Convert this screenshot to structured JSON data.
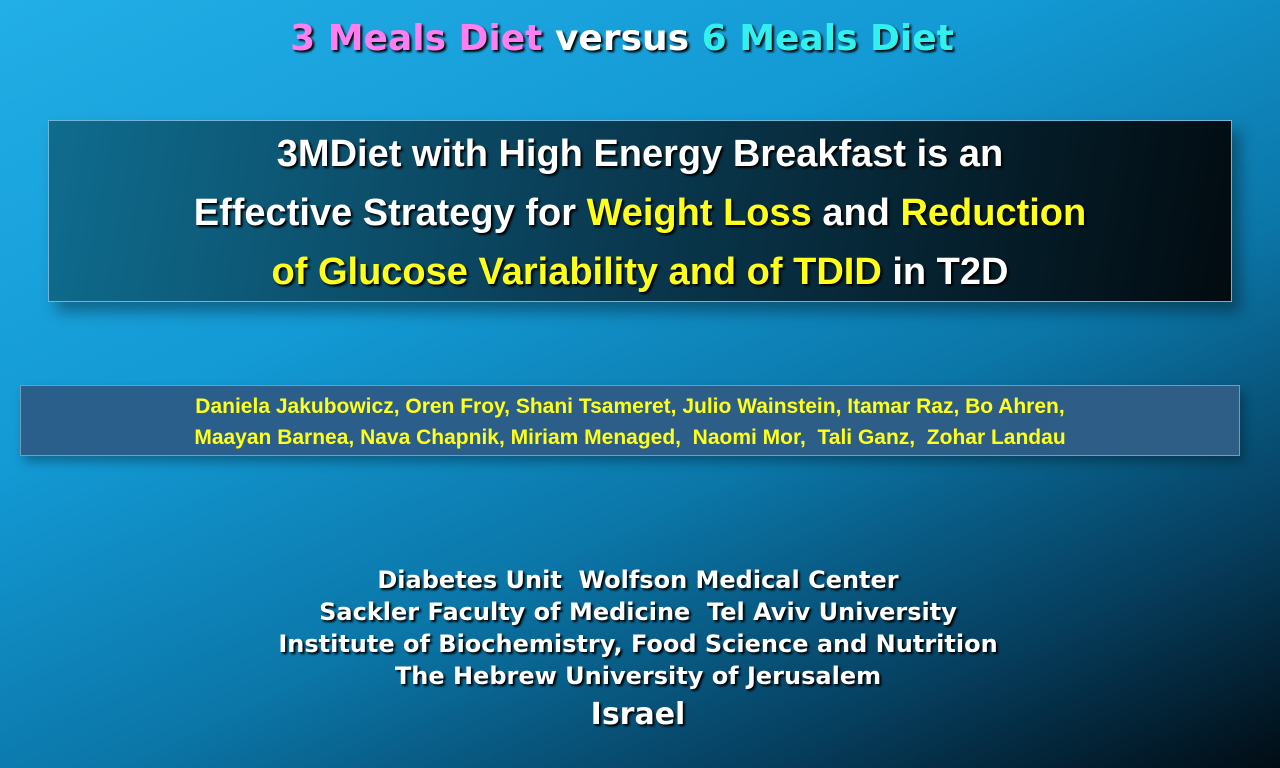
{
  "header": {
    "parts": [
      "3 Meals Diet",
      "versus",
      "6 Meals Diet"
    ]
  },
  "headline": {
    "lines": [
      [
        "3MDiet with High Energy Breakfast is an"
      ],
      [
        "Effective Strategy for",
        "Weight Loss",
        "and",
        "Reduction"
      ],
      [
        "of Glucose Variability and of TDID",
        "in T2D"
      ]
    ]
  },
  "authors": {
    "lines": [
      "Daniela Jakubowicz, Oren Froy, Shani Tsameret, Julio Wainstein, Itamar Raz, Bo Ahren,",
      "Maayan Barnea, Nava Chapnik, Miriam Menaged,  Naomi Mor,  Tali Ganz,  Zohar Landau"
    ]
  },
  "affiliations": {
    "lines": [
      "Diabetes Unit  Wolfson Medical Center",
      "Sackler Faculty of Medicine  Tel Aviv University",
      "Institute of Biochemistry, Food Science and Nutrition",
      "The Hebrew University of Jerusalem",
      "Israel"
    ]
  }
}
